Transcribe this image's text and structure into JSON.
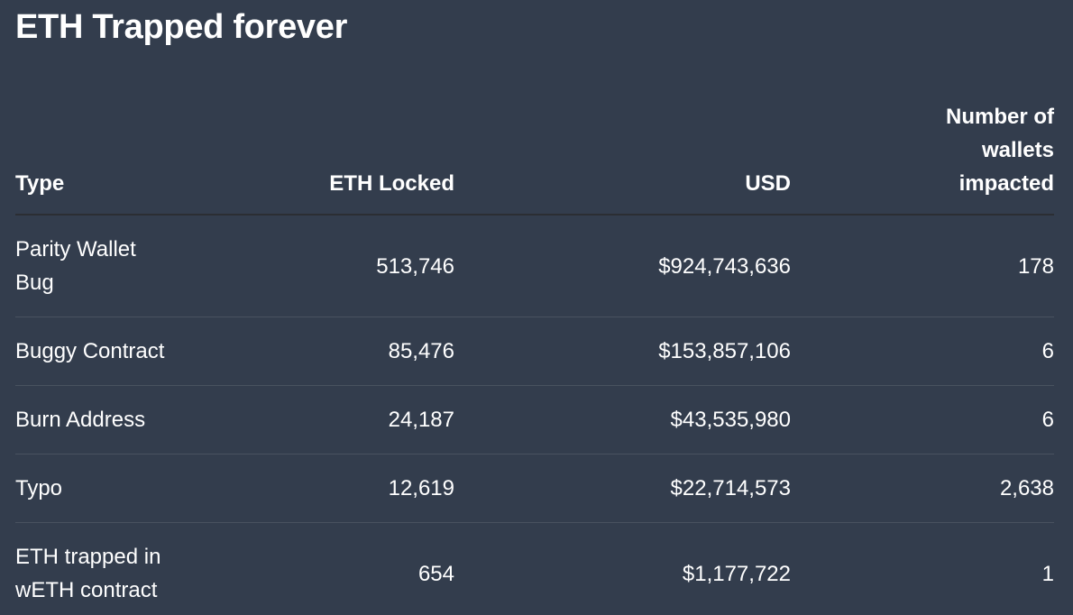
{
  "page": {
    "title": "ETH Trapped forever"
  },
  "colors": {
    "background": "#333d4d",
    "text": "#ffffff",
    "header_border": "#2b2e33",
    "row_border": "#49525f"
  },
  "chart_data": {
    "type": "table",
    "title": "ETH Trapped forever",
    "columns": [
      "Type",
      "ETH Locked",
      "USD",
      "Number of wallets impacted"
    ],
    "column_alignments": [
      "left",
      "right",
      "right",
      "right"
    ],
    "rows": [
      [
        "Parity Wallet Bug",
        "513,746",
        "$924,743,636",
        "178"
      ],
      [
        "Buggy Contract",
        "85,476",
        "$153,857,106",
        "6"
      ],
      [
        "Burn Address",
        "24,187",
        "$43,535,980",
        "6"
      ],
      [
        "Typo",
        "12,619",
        "$22,714,573",
        "2,638"
      ],
      [
        "ETH trapped in wETH contract",
        "654",
        "$1,177,722",
        "1"
      ]
    ]
  }
}
